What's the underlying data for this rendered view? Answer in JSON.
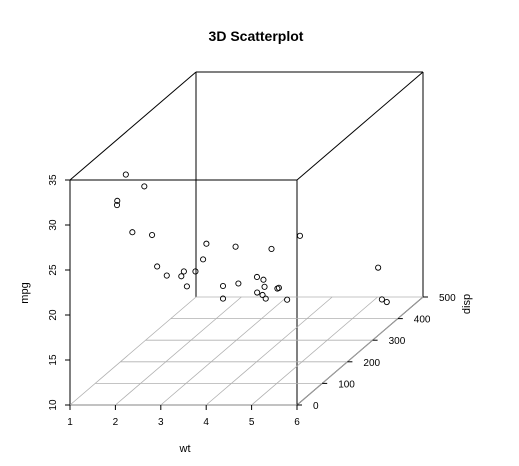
{
  "chart_data": {
    "type": "scatter",
    "title": "3D Scatterplot",
    "xlabel": "wt",
    "ylabel": "disp",
    "zlabel": "mpg",
    "xlim": [
      1,
      6
    ],
    "ylim": [
      0,
      500
    ],
    "zlim": [
      10,
      35
    ],
    "x_ticks": [
      "1",
      "2",
      "3",
      "4",
      "5",
      "6"
    ],
    "y_ticks": [
      "0",
      "100",
      "200",
      "300",
      "400",
      "500"
    ],
    "z_ticks": [
      "10",
      "15",
      "20",
      "25",
      "30",
      "35"
    ],
    "grid": "floor",
    "points": [
      {
        "x": 2.62,
        "y": 160,
        "z": 21.0
      },
      {
        "x": 2.875,
        "y": 160,
        "z": 21.0
      },
      {
        "x": 2.32,
        "y": 108,
        "z": 22.8
      },
      {
        "x": 3.215,
        "y": 258,
        "z": 21.4
      },
      {
        "x": 3.44,
        "y": 360,
        "z": 18.7
      },
      {
        "x": 3.46,
        "y": 225,
        "z": 18.1
      },
      {
        "x": 3.57,
        "y": 360,
        "z": 14.3
      },
      {
        "x": 3.19,
        "y": 146.7,
        "z": 24.4
      },
      {
        "x": 3.15,
        "y": 140.8,
        "z": 22.8
      },
      {
        "x": 3.44,
        "y": 167.6,
        "z": 19.2
      },
      {
        "x": 3.44,
        "y": 167.6,
        "z": 17.8
      },
      {
        "x": 4.07,
        "y": 275.8,
        "z": 16.4
      },
      {
        "x": 3.73,
        "y": 275.8,
        "z": 17.3
      },
      {
        "x": 3.78,
        "y": 275.8,
        "z": 15.2
      },
      {
        "x": 5.25,
        "y": 472,
        "z": 10.4
      },
      {
        "x": 5.424,
        "y": 460,
        "z": 10.4
      },
      {
        "x": 5.345,
        "y": 440,
        "z": 14.7
      },
      {
        "x": 2.2,
        "y": 78.7,
        "z": 32.4
      },
      {
        "x": 1.615,
        "y": 75.7,
        "z": 30.4
      },
      {
        "x": 1.835,
        "y": 71.1,
        "z": 33.9
      },
      {
        "x": 2.465,
        "y": 120.1,
        "z": 21.5
      },
      {
        "x": 3.52,
        "y": 318,
        "z": 15.5
      },
      {
        "x": 3.435,
        "y": 304,
        "z": 15.2
      },
      {
        "x": 3.84,
        "y": 350,
        "z": 13.3
      },
      {
        "x": 3.845,
        "y": 400,
        "z": 19.2
      },
      {
        "x": 1.935,
        "y": 79,
        "z": 27.3
      },
      {
        "x": 2.14,
        "y": 120.3,
        "z": 26.0
      },
      {
        "x": 1.513,
        "y": 95.1,
        "z": 30.4
      },
      {
        "x": 3.17,
        "y": 351,
        "z": 15.8
      },
      {
        "x": 2.77,
        "y": 145,
        "z": 19.7
      },
      {
        "x": 3.57,
        "y": 301,
        "z": 15.0
      },
      {
        "x": 2.78,
        "y": 121,
        "z": 21.4
      }
    ]
  }
}
